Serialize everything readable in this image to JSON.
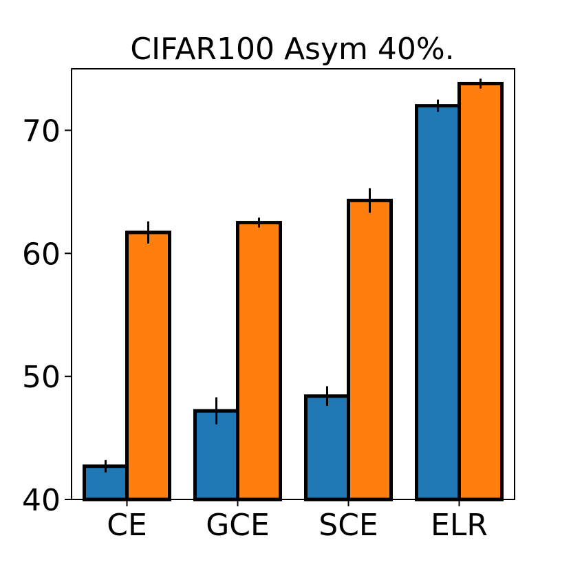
{
  "chart_data": {
    "type": "bar",
    "title": "CIFAR100 Asym 40%.",
    "xlabel": "",
    "ylabel": "",
    "categories": [
      "CE",
      "GCE",
      "SCE",
      "ELR"
    ],
    "series": [
      {
        "color": "#1f77b4",
        "values": [
          42.7,
          47.2,
          48.4,
          72.0
        ],
        "errors": [
          0.5,
          1.1,
          0.8,
          0.5
        ]
      },
      {
        "color": "#ff7f0e",
        "values": [
          61.7,
          62.5,
          64.3,
          73.8
        ],
        "errors": [
          0.9,
          0.4,
          1.0,
          0.4
        ]
      }
    ],
    "ylim": [
      40,
      75
    ],
    "yticks": [
      40,
      50,
      60,
      70
    ],
    "ytick_labels": [
      "40",
      "50",
      "60",
      "70"
    ],
    "grid": false,
    "legend": "none"
  }
}
